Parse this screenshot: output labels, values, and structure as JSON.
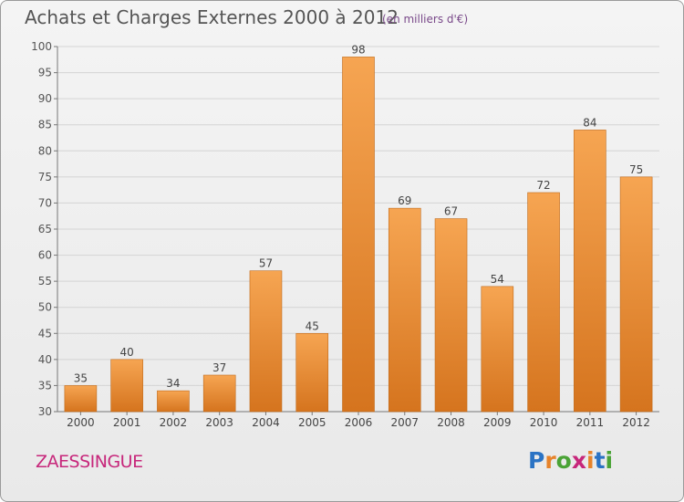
{
  "header": {
    "title": "Achats et Charges Externes 2000 à 2012",
    "subtitle": "(en milliers d'€)"
  },
  "footer": {
    "commune": "ZAESSINGUE",
    "logo": {
      "letters": [
        "P",
        "r",
        "o",
        "x",
        "i",
        "t",
        "i"
      ],
      "colors": [
        "#2b73c4",
        "#e7832a",
        "#4aa336",
        "#c7277b",
        "#e7832a",
        "#2b73c4",
        "#4aa336"
      ]
    }
  },
  "chart_data": {
    "type": "bar",
    "categories": [
      "2000",
      "2001",
      "2002",
      "2003",
      "2004",
      "2005",
      "2006",
      "2007",
      "2008",
      "2009",
      "2010",
      "2011",
      "2012"
    ],
    "values": [
      35,
      40,
      34,
      37,
      57,
      45,
      98,
      69,
      67,
      54,
      72,
      84,
      75
    ],
    "ylim": [
      30,
      100
    ],
    "yticks": [
      30,
      35,
      40,
      45,
      50,
      55,
      60,
      65,
      70,
      75,
      80,
      85,
      90,
      95,
      100
    ],
    "grid": true,
    "bar_color": "#f09a3e"
  }
}
